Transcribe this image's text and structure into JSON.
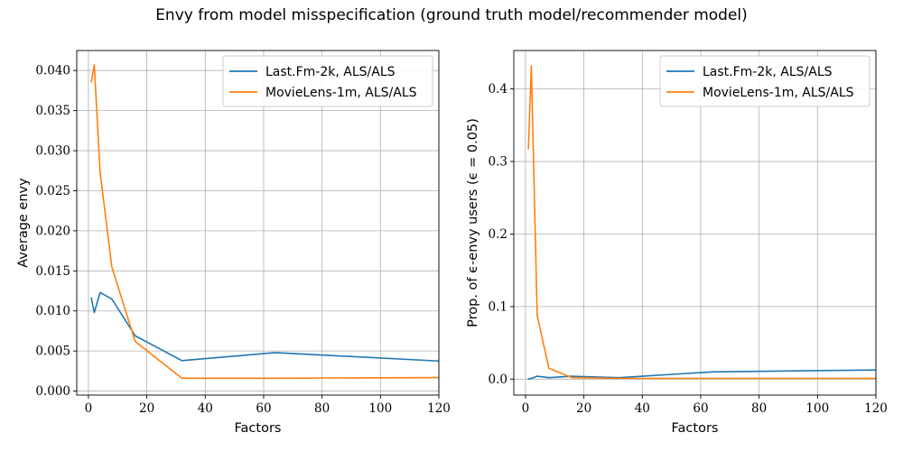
{
  "title": "Envy from model misspecification (ground truth model/recommender model)",
  "colors": {
    "blue": "#1f77b4",
    "orange": "#ff7f0e",
    "grid": "#b0b0b0"
  },
  "chart_data": [
    {
      "type": "line",
      "xlabel": "Factors",
      "ylabel": "Average envy",
      "xlim": [
        -4,
        120
      ],
      "ylim": [
        -0.0005,
        0.0425
      ],
      "xticks": [
        "0",
        "20",
        "40",
        "60",
        "80",
        "100",
        "120"
      ],
      "xtick_values": [
        0,
        20,
        40,
        60,
        80,
        100,
        120
      ],
      "yticks": [
        "0.000",
        "0.005",
        "0.010",
        "0.015",
        "0.020",
        "0.025",
        "0.030",
        "0.035",
        "0.040"
      ],
      "ytick_values": [
        0,
        0.005,
        0.01,
        0.015,
        0.02,
        0.025,
        0.03,
        0.035,
        0.04
      ],
      "grid": true,
      "legend": "top-right",
      "series": [
        {
          "name": "Last.Fm-2k, ALS/ALS",
          "color": "#1f77b4",
          "x": [
            1,
            2,
            4,
            8,
            16,
            32,
            64,
            128
          ],
          "y": [
            0.0116,
            0.0098,
            0.0123,
            0.0115,
            0.0069,
            0.0038,
            0.0048,
            0.0036
          ]
        },
        {
          "name": "MovieLens-1m, ALS/ALS",
          "color": "#ff7f0e",
          "x": [
            1,
            2,
            4,
            8,
            16,
            32,
            64,
            128
          ],
          "y": [
            0.0386,
            0.0407,
            0.0273,
            0.0155,
            0.0062,
            0.0016,
            0.0016,
            0.0017
          ]
        }
      ]
    },
    {
      "type": "line",
      "xlabel": "Factors",
      "ylabel": "Prop. of ϵ-envy users (ϵ = 0.05)",
      "xlim": [
        -4,
        120
      ],
      "ylim": [
        -0.022,
        0.453
      ],
      "xticks": [
        "0",
        "20",
        "40",
        "60",
        "80",
        "100",
        "120"
      ],
      "xtick_values": [
        0,
        20,
        40,
        60,
        80,
        100,
        120
      ],
      "yticks": [
        "0.0",
        "0.1",
        "0.2",
        "0.3",
        "0.4"
      ],
      "ytick_values": [
        0,
        0.1,
        0.2,
        0.3,
        0.4
      ],
      "grid": true,
      "legend": "top-right",
      "series": [
        {
          "name": "Last.Fm-2k, ALS/ALS",
          "color": "#1f77b4",
          "x": [
            1,
            2,
            4,
            8,
            16,
            32,
            64,
            128
          ],
          "y": [
            0.0,
            0.001,
            0.004,
            0.002,
            0.004,
            0.002,
            0.01,
            0.013
          ]
        },
        {
          "name": "MovieLens-1m, ALS/ALS",
          "color": "#ff7f0e",
          "x": [
            1,
            2,
            4,
            8,
            16,
            32,
            64,
            128
          ],
          "y": [
            0.318,
            0.432,
            0.088,
            0.015,
            0.002,
            0.001,
            0.001,
            0.001
          ]
        }
      ]
    }
  ]
}
